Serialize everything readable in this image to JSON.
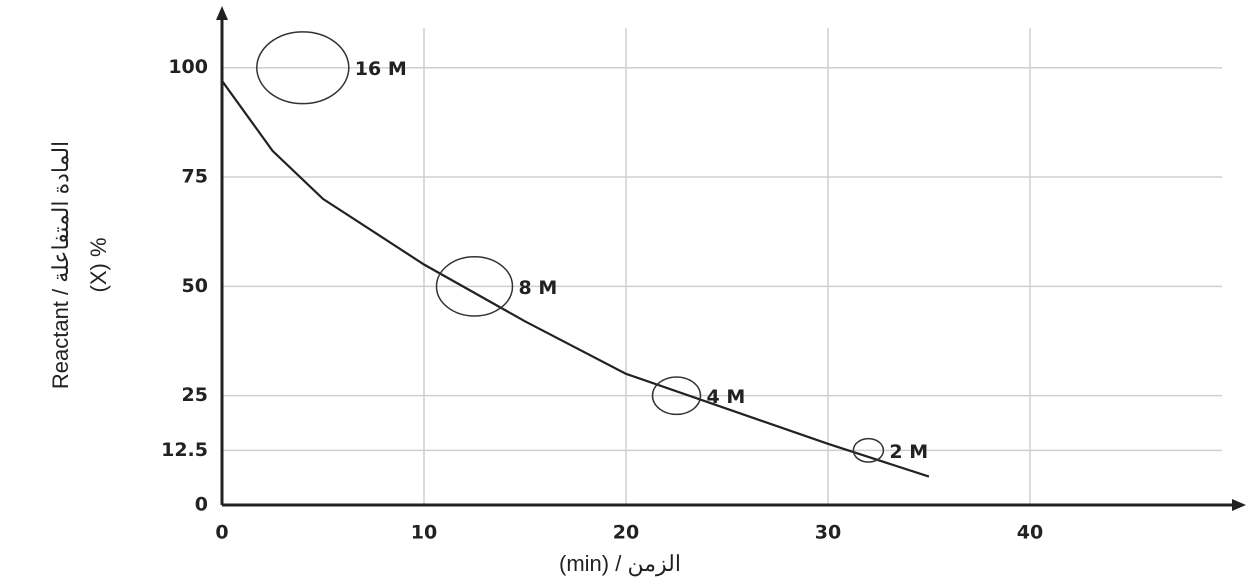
{
  "chart_data": {
    "type": "line",
    "x_label": "(min) / الزمن",
    "y_label": [
      "Reactant / المادة المتفاعلة",
      "(X) %"
    ],
    "x": [
      0,
      2.5,
      5,
      10,
      15,
      20,
      25,
      30,
      35
    ],
    "series": [
      {
        "color": "#222222",
        "values": [
          97,
          81,
          70,
          55,
          42,
          30,
          22,
          14,
          6.5
        ]
      }
    ],
    "xlim": [
      0,
      50
    ],
    "ylim": [
      0,
      110
    ],
    "xticks": [
      0,
      10,
      20,
      30,
      40
    ],
    "yticks": [
      0,
      12.5,
      25,
      50,
      75,
      100
    ],
    "grid": true,
    "annotations": [
      {
        "text": "16 M",
        "x": 4,
        "y": 100
      },
      {
        "text": "8 M",
        "x": 12.5,
        "y": 50
      },
      {
        "text": "4 M",
        "x": 22.5,
        "y": 25
      },
      {
        "text": "2 M",
        "x": 32,
        "y": 12.5
      }
    ]
  }
}
